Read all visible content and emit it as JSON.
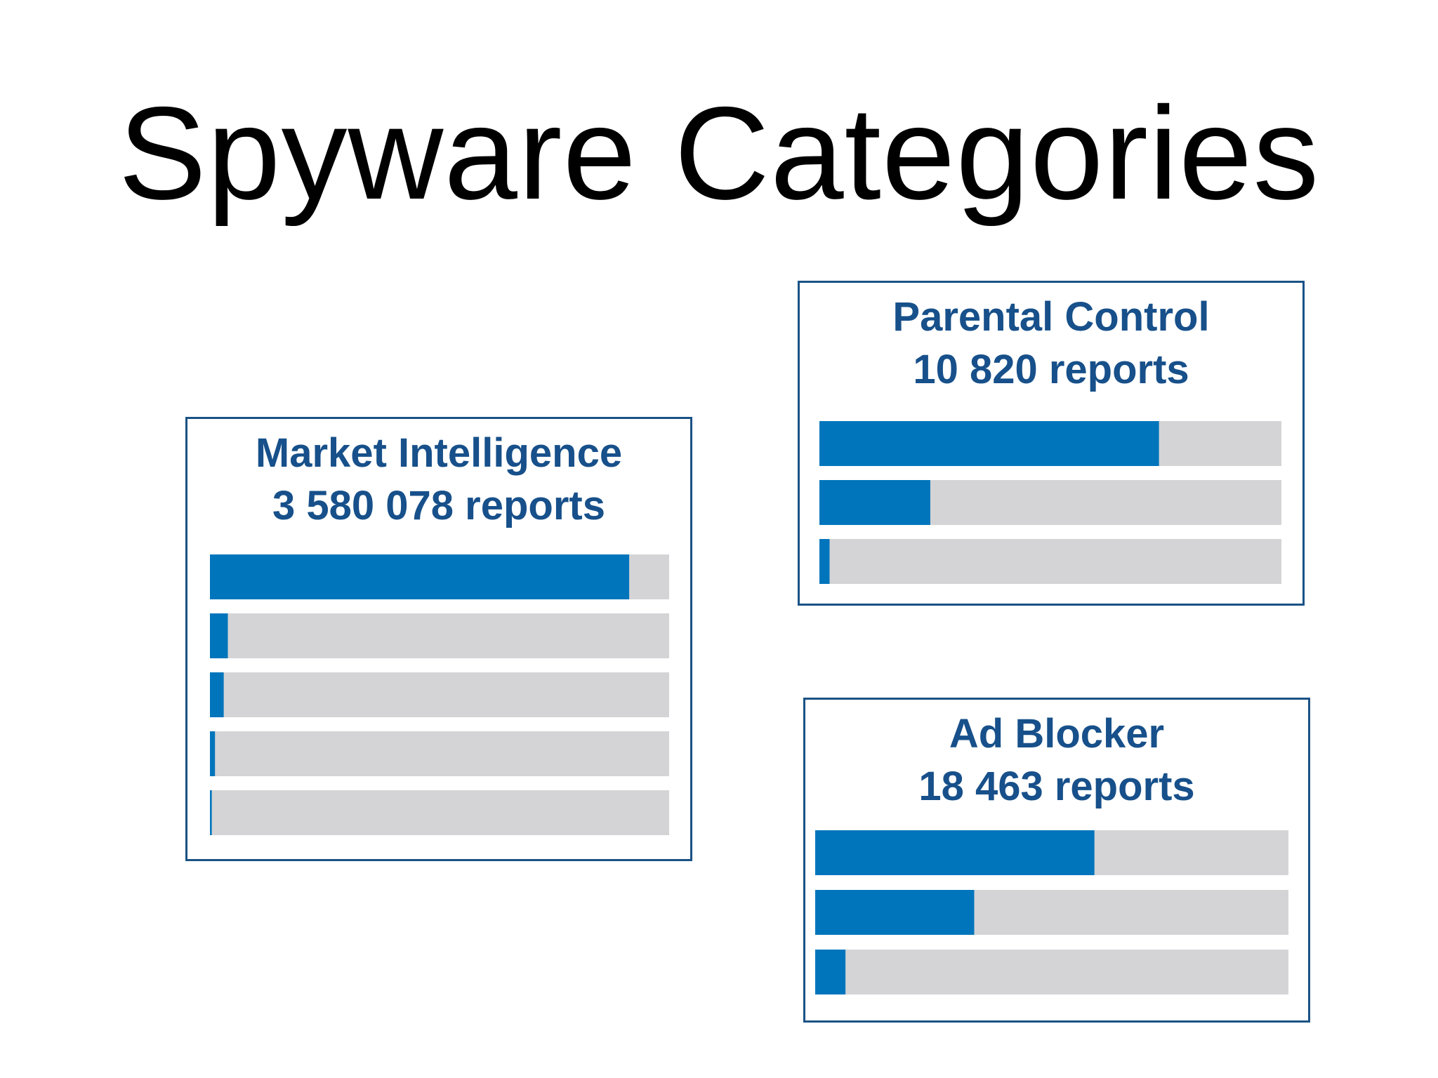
{
  "page": {
    "title": "Spyware Categories",
    "colors": {
      "background": "#ffffff",
      "title_text": "#000000",
      "panel_border": "#1a5285",
      "panel_text": "#17508a",
      "bar_fill": "#0175bc",
      "bar_track": "#d4d4d6"
    }
  },
  "chart_data": [
    {
      "type": "bar",
      "orientation": "horizontal",
      "title": "Market Intelligence",
      "subtitle": "3 580 078 reports",
      "values": [
        0.913,
        0.039,
        0.03,
        0.011,
        0.004
      ],
      "xlim": [
        0,
        1
      ]
    },
    {
      "type": "bar",
      "orientation": "horizontal",
      "title": "Parental Control",
      "subtitle": "10 820 reports",
      "values": [
        0.735,
        0.24,
        0.022
      ],
      "xlim": [
        0,
        1
      ]
    },
    {
      "type": "bar",
      "orientation": "horizontal",
      "title": "Ad Blocker",
      "subtitle": "18 463 reports",
      "values": [
        0.59,
        0.336,
        0.064
      ],
      "xlim": [
        0,
        1
      ]
    }
  ]
}
